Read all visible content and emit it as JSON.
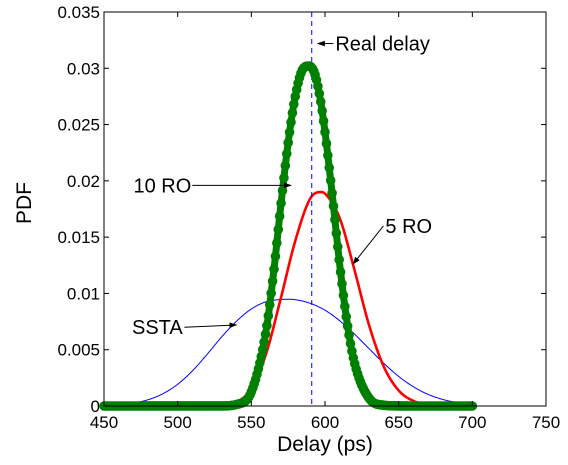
{
  "chart_data": {
    "type": "line",
    "title": "",
    "xlabel": "Delay (ps)",
    "ylabel": "PDF",
    "xlim": [
      450,
      750
    ],
    "ylim": [
      0,
      0.035
    ],
    "xticks": [
      450,
      500,
      550,
      600,
      650,
      700,
      750
    ],
    "yticks": [
      0,
      0.005,
      0.01,
      0.015,
      0.02,
      0.025,
      0.03,
      0.035
    ],
    "xtick_labels": [
      "450",
      "500",
      "550",
      "600",
      "650",
      "700",
      "750"
    ],
    "ytick_labels": [
      "0",
      "0.005",
      "0.01",
      "0.015",
      "0.02",
      "0.025",
      "0.03",
      "0.035"
    ],
    "grid": false,
    "series": [
      {
        "name": "SSTA",
        "color": "#0000ff",
        "style": "thin-line",
        "x": [
          450,
          460,
          470,
          480,
          490,
          500,
          510,
          520,
          530,
          540,
          550,
          560,
          570,
          575,
          580,
          590,
          600,
          610,
          620,
          630,
          640,
          650,
          660,
          670,
          680,
          690,
          700
        ],
        "y": [
          4e-05,
          0.00011,
          0.00026,
          0.00056,
          0.00109,
          0.00193,
          0.00312,
          0.00459,
          0.00616,
          0.00754,
          0.00862,
          0.00926,
          0.00946,
          0.00948,
          0.00944,
          0.00912,
          0.00851,
          0.00757,
          0.00639,
          0.00508,
          0.00378,
          0.00263,
          0.00171,
          0.00103,
          0.00058,
          0.0003,
          0.00014
        ]
      },
      {
        "name": "5 RO",
        "color": "#ff0000",
        "style": "medium-line",
        "x": [
          450,
          520,
          530,
          540,
          550,
          560,
          570,
          580,
          590,
          597,
          600,
          610,
          620,
          630,
          640,
          650,
          660,
          670,
          680,
          700
        ],
        "y": [
          0,
          1e-05,
          6e-05,
          0.00035,
          0.00154,
          0.00463,
          0.00957,
          0.01475,
          0.01843,
          0.019,
          0.01887,
          0.01668,
          0.01209,
          0.00714,
          0.00347,
          0.00138,
          0.00045,
          0.00012,
          3e-05,
          0
        ]
      },
      {
        "name": "10 RO",
        "color": "#008000",
        "style": "thick-markers",
        "x": [
          450,
          530,
          540,
          550,
          560,
          565,
          570,
          575,
          580,
          585,
          589,
          593,
          597,
          600,
          605,
          610,
          615,
          620,
          630,
          640,
          650,
          660,
          700
        ],
        "y": [
          0,
          1e-05,
          0.00014,
          0.00126,
          0.00667,
          0.01172,
          0.01779,
          0.02339,
          0.02762,
          0.02994,
          0.0302,
          0.02954,
          0.02712,
          0.02434,
          0.01868,
          0.01255,
          0.00742,
          0.00385,
          0.00068,
          7e-05,
          1e-05,
          0,
          0
        ]
      }
    ],
    "reference_lines": [
      {
        "name": "Real delay",
        "x": 591,
        "color": "#0000ff",
        "style": "dashed"
      }
    ],
    "annotations": [
      {
        "text": "Real delay",
        "text_at": [
          607,
          0.0322
        ],
        "arrow_to": [
          595,
          0.0322
        ]
      },
      {
        "text": "10 RO",
        "text_at": [
          470,
          0.0196
        ],
        "arrow_to": [
          577,
          0.0196
        ]
      },
      {
        "text": "5 RO",
        "text_at": [
          641,
          0.016
        ],
        "arrow_to": [
          619,
          0.0126
        ]
      },
      {
        "text": "SSTA",
        "text_at": [
          469,
          0.007
        ],
        "arrow_to": [
          540,
          0.0072
        ]
      }
    ]
  }
}
